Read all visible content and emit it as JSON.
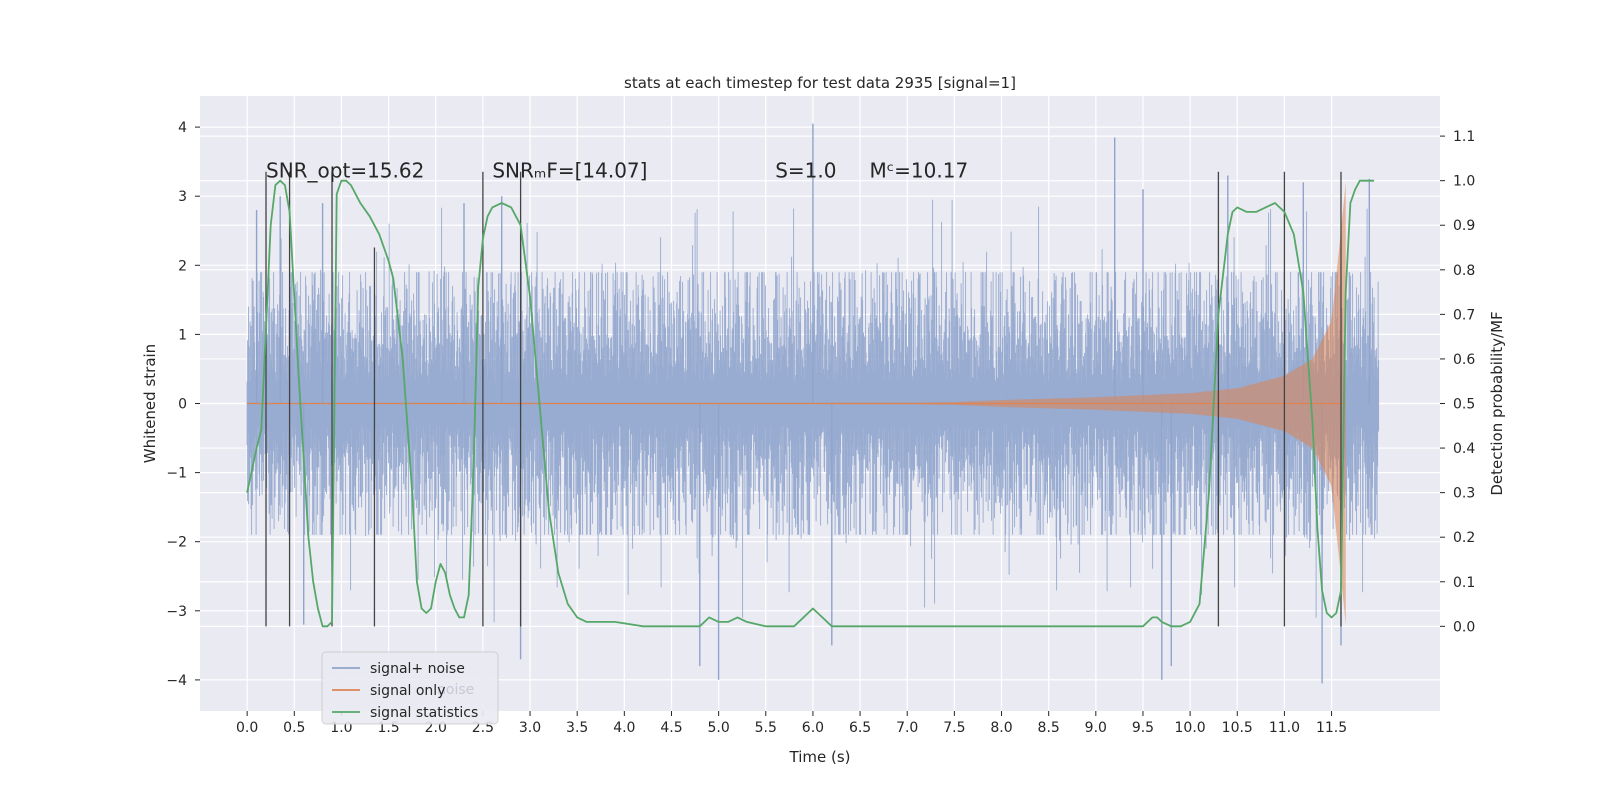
{
  "chart_data": {
    "type": "line",
    "title": "stats at each timestep for test data 2935 [signal=1]",
    "xlabel": "Time (s)",
    "ylabel": "Whitened strain",
    "y2label": "Detection probability/MF",
    "xlim": [
      -0.5,
      12.65
    ],
    "ylim": [
      -4.45,
      4.45
    ],
    "y2lim": [
      -0.19,
      1.19
    ],
    "x_ticks": [
      0.0,
      0.5,
      1.0,
      1.5,
      2.0,
      2.5,
      3.0,
      3.5,
      4.0,
      4.5,
      5.0,
      5.5,
      6.0,
      6.5,
      7.0,
      7.5,
      8.0,
      8.5,
      9.0,
      9.5,
      10.0,
      10.5,
      11.0,
      11.5
    ],
    "x_tick_labels": [
      "0.0",
      "0.5",
      "1.0",
      "1.5",
      "2.0",
      "2.5",
      "3.0",
      "3.5",
      "4.0",
      "4.5",
      "5.0",
      "5.5",
      "6.0",
      "6.5",
      "7.0",
      "7.5",
      "8.0",
      "8.5",
      "9.0",
      "9.5",
      "10.0",
      "10.5",
      "11.0",
      "11.5"
    ],
    "y_ticks": [
      -4,
      -3,
      -2,
      -1,
      0,
      1,
      2,
      3,
      4
    ],
    "y_tick_labels": [
      "−4",
      "−3",
      "−2",
      "−1",
      "0",
      "1",
      "2",
      "3",
      "4"
    ],
    "y2_ticks": [
      0.0,
      0.1,
      0.2,
      0.3,
      0.4,
      0.5,
      0.6,
      0.7,
      0.8,
      0.9,
      1.0,
      1.1
    ],
    "y2_tick_labels": [
      "0.0",
      "0.1",
      "0.2",
      "0.3",
      "0.4",
      "0.5",
      "0.6",
      "0.7",
      "0.8",
      "0.9",
      "1.0",
      "1.1"
    ],
    "grid": true,
    "legend_position": "lower-left",
    "legend": [
      {
        "label": "signal+ noise",
        "color": "#8fa4cc"
      },
      {
        "label": "signal only",
        "color": "#dd8452"
      },
      {
        "label": "signal statistics",
        "color": "#55a868"
      }
    ],
    "legend_ghost_text": "noise",
    "annotations": [
      {
        "text": "SNR_opt=15.62",
        "x": 0.2,
        "y": 3.3
      },
      {
        "text": "SNRₘF=[14.07]",
        "x": 2.6,
        "y": 3.3
      },
      {
        "text": "S=1.0",
        "x": 5.6,
        "y": 3.3
      },
      {
        "text": "Mᶜ=10.17",
        "x": 6.6,
        "y": 3.3
      }
    ],
    "series": [
      {
        "name": "signal+ noise",
        "color": "#8fa4cc",
        "kind": "noise",
        "x_range": [
          0.0,
          12.0
        ],
        "typical_envelope": [
          -1.9,
          1.9
        ],
        "notable_peaks": [
          [
            0.1,
            2.8
          ],
          [
            0.35,
            3.0
          ],
          [
            0.8,
            2.9
          ],
          [
            2.3,
            2.9
          ],
          [
            2.7,
            3.0
          ],
          [
            6.0,
            4.05
          ],
          [
            9.2,
            3.85
          ],
          [
            9.5,
            3.1
          ],
          [
            10.4,
            3.3
          ],
          [
            11.2,
            3.2
          ],
          [
            11.9,
            3.25
          ],
          [
            0.6,
            -3.2
          ],
          [
            2.9,
            -3.7
          ],
          [
            4.8,
            -3.8
          ],
          [
            5.0,
            -4.0
          ],
          [
            6.2,
            -3.5
          ],
          [
            9.7,
            -4.0
          ],
          [
            9.8,
            -3.8
          ],
          [
            11.4,
            -4.05
          ],
          [
            11.6,
            -3.5
          ]
        ]
      },
      {
        "name": "signal only",
        "color": "#dd8452",
        "kind": "chirp",
        "x_range": [
          0.0,
          11.65
        ],
        "amplitude_points": [
          [
            0.0,
            0.005
          ],
          [
            7.0,
            0.01
          ],
          [
            7.5,
            0.02
          ],
          [
            8.0,
            0.05
          ],
          [
            9.0,
            0.09
          ],
          [
            10.0,
            0.15
          ],
          [
            10.5,
            0.22
          ],
          [
            11.0,
            0.4
          ],
          [
            11.3,
            0.65
          ],
          [
            11.5,
            1.2
          ],
          [
            11.6,
            2.5
          ],
          [
            11.65,
            3.2
          ]
        ]
      },
      {
        "name": "signal statistics",
        "color": "#55a868",
        "axis": "right",
        "x": [
          0.0,
          0.1,
          0.15,
          0.25,
          0.3,
          0.35,
          0.4,
          0.45,
          0.55,
          0.65,
          0.7,
          0.75,
          0.8,
          0.85,
          0.9,
          0.95,
          1.0,
          1.05,
          1.1,
          1.2,
          1.3,
          1.4,
          1.5,
          1.55,
          1.65,
          1.75,
          1.8,
          1.85,
          1.9,
          1.95,
          2.0,
          2.05,
          2.1,
          2.15,
          2.2,
          2.25,
          2.3,
          2.35,
          2.4,
          2.45,
          2.5,
          2.55,
          2.6,
          2.7,
          2.8,
          2.9,
          3.0,
          3.1,
          3.2,
          3.3,
          3.4,
          3.5,
          3.6,
          3.7,
          3.9,
          4.2,
          4.5,
          4.8,
          4.9,
          5.0,
          5.1,
          5.2,
          5.3,
          5.5,
          5.8,
          6.0,
          6.1,
          6.2,
          6.3,
          6.5,
          8.0,
          9.5,
          9.6,
          9.65,
          9.7,
          9.8,
          9.9,
          10.0,
          10.1,
          10.2,
          10.3,
          10.4,
          10.45,
          10.5,
          10.6,
          10.7,
          10.8,
          10.9,
          11.0,
          11.1,
          11.2,
          11.3,
          11.35,
          11.4,
          11.45,
          11.5,
          11.55,
          11.6,
          11.65,
          11.7,
          11.75,
          11.8,
          11.85,
          11.9,
          11.95
        ],
        "values": [
          0.3,
          0.4,
          0.44,
          0.9,
          0.99,
          1.0,
          0.99,
          0.93,
          0.55,
          0.2,
          0.1,
          0.04,
          0.0,
          0.0,
          0.01,
          0.97,
          1.0,
          1.0,
          0.99,
          0.95,
          0.92,
          0.88,
          0.82,
          0.78,
          0.6,
          0.3,
          0.1,
          0.04,
          0.03,
          0.04,
          0.1,
          0.14,
          0.12,
          0.07,
          0.04,
          0.02,
          0.02,
          0.07,
          0.35,
          0.76,
          0.87,
          0.92,
          0.94,
          0.95,
          0.94,
          0.9,
          0.74,
          0.5,
          0.26,
          0.12,
          0.05,
          0.02,
          0.01,
          0.01,
          0.01,
          0.0,
          0.0,
          0.0,
          0.02,
          0.01,
          0.01,
          0.02,
          0.01,
          0.0,
          0.0,
          0.04,
          0.02,
          0.0,
          0.0,
          0.0,
          0.0,
          0.0,
          0.02,
          0.02,
          0.01,
          0.0,
          0.0,
          0.01,
          0.05,
          0.3,
          0.7,
          0.88,
          0.93,
          0.94,
          0.93,
          0.93,
          0.94,
          0.95,
          0.93,
          0.88,
          0.75,
          0.45,
          0.22,
          0.08,
          0.03,
          0.02,
          0.03,
          0.08,
          0.75,
          0.95,
          0.98,
          1.0,
          1.0,
          1.0,
          1.0
        ]
      }
    ],
    "vertical_markers": {
      "color": "#444444",
      "x": [
        0.2,
        0.45,
        0.9,
        1.35,
        2.5,
        2.9,
        10.3,
        11.0,
        11.6
      ],
      "y_top": [
        1.02,
        1.02,
        1.02,
        0.85,
        1.02,
        1.02,
        1.02,
        1.02,
        1.02
      ]
    }
  }
}
